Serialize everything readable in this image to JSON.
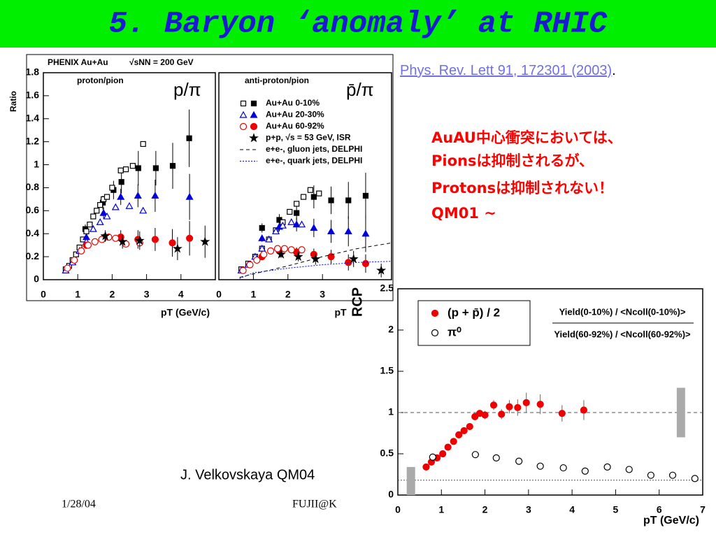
{
  "title": "5. Baryon ‘anomaly’ at RHIC",
  "reference": "Phys. Rev. Lett 91, 172301 (2003)",
  "reference_end": ".",
  "note_lines": [
    "AuAU中心衝突においては、",
    "Pionsは抑制されるが、",
    "Protonsは抑制されない！",
    "QM01 ~"
  ],
  "credit": "J. Velkovskaya QM04",
  "footer_date": "1/28/04",
  "footer_author": "FUJII@K",
  "chart_data": [
    {
      "type": "scatter",
      "header": "PHENIX Au+Au",
      "header_energy": "√sNN = 200 GeV",
      "panel_title": "proton/pion",
      "ratio_label": "p/π",
      "ylabel": "Ratio",
      "xlabel": "pT (GeV/c)",
      "xlim": [
        0,
        5
      ],
      "xticks": [
        0,
        1,
        2,
        3,
        4
      ],
      "ylim": [
        0,
        1.8
      ],
      "yticks": [
        0,
        0.2,
        0.4,
        0.6,
        0.8,
        1,
        1.2,
        1.4,
        1.6,
        1.8
      ],
      "series": [
        {
          "color": "#000000",
          "marker": "square",
          "x": [
            1.22,
            1.73,
            2.04,
            2.27,
            2.76,
            3.27,
            3.76,
            4.24
          ],
          "values": [
            0.44,
            0.67,
            0.78,
            0.85,
            0.97,
            0.97,
            0.99,
            1.23
          ],
          "errors": [
            0.04,
            0.06,
            0.08,
            0.1,
            0.15,
            0.15,
            0.2,
            0.25
          ],
          "x_open": [
            0.65,
            0.75,
            0.85,
            0.95,
            1.05,
            1.15,
            1.25,
            1.35,
            1.45,
            1.55,
            1.65,
            1.75,
            1.85,
            2.0,
            2.25,
            2.4,
            2.6,
            2.9
          ],
          "values_open": [
            0.09,
            0.12,
            0.17,
            0.22,
            0.28,
            0.35,
            0.42,
            0.48,
            0.55,
            0.6,
            0.65,
            0.7,
            0.72,
            0.8,
            0.95,
            0.96,
            0.99,
            1.18
          ]
        },
        {
          "color": "#0000dd",
          "marker": "triangle",
          "x": [
            1.25,
            1.75,
            2.25,
            2.75,
            3.25,
            4.25
          ],
          "values": [
            0.37,
            0.58,
            0.72,
            0.73,
            0.73,
            0.72
          ],
          "errors": [
            0.03,
            0.05,
            0.07,
            0.1,
            0.14,
            0.2
          ],
          "x_open": [
            0.65,
            0.85,
            1.05,
            1.25,
            1.45,
            1.65,
            1.85,
            2.1,
            2.5,
            2.9
          ],
          "values_open": [
            0.08,
            0.15,
            0.25,
            0.33,
            0.44,
            0.5,
            0.55,
            0.63,
            0.64,
            0.6
          ]
        },
        {
          "color": "#ee0000",
          "marker": "circle",
          "x": [
            1.25,
            1.75,
            2.25,
            2.75,
            3.25,
            3.75,
            4.25
          ],
          "values": [
            0.3,
            0.36,
            0.37,
            0.35,
            0.35,
            0.32,
            0.36
          ],
          "errors": [
            0.03,
            0.04,
            0.06,
            0.08,
            0.1,
            0.12,
            0.15
          ],
          "x_open": [
            0.7,
            0.9,
            1.1,
            1.3,
            1.5,
            1.7,
            1.9,
            2.1,
            2.4,
            2.8
          ],
          "values_open": [
            0.1,
            0.17,
            0.25,
            0.3,
            0.33,
            0.35,
            0.37,
            0.36,
            0.31,
            0.32
          ]
        },
        {
          "color": "#000000",
          "marker": "star",
          "x": [
            1.8,
            2.3,
            2.8,
            3.9,
            4.7
          ],
          "values": [
            0.38,
            0.33,
            0.34,
            0.27,
            0.33
          ],
          "errors": [
            0.05,
            0.06,
            0.08,
            0.1,
            0.14
          ]
        }
      ]
    },
    {
      "type": "scatter",
      "panel_title": "anti-proton/pion",
      "ratio_label": "p̄/π",
      "xlabel": "pT",
      "xlim": [
        0,
        5
      ],
      "xticks": [
        0,
        1,
        2,
        3
      ],
      "ylim": [
        0,
        1.8
      ],
      "series": [
        {
          "name": "Au+Au 0-10%",
          "color": "#000000",
          "marker": "square",
          "x": [
            1.25,
            1.75,
            2.25,
            2.75,
            3.25,
            3.75,
            4.25
          ],
          "values": [
            0.45,
            0.52,
            0.58,
            0.72,
            0.69,
            0.69,
            0.73
          ],
          "errors": [
            0.04,
            0.05,
            0.07,
            0.1,
            0.12,
            0.16,
            0.2
          ],
          "x_open": [
            0.65,
            0.85,
            1.05,
            1.25,
            1.45,
            1.65,
            1.85,
            2.05,
            2.25,
            2.45,
            2.65,
            2.9
          ],
          "values_open": [
            0.09,
            0.14,
            0.2,
            0.27,
            0.35,
            0.43,
            0.5,
            0.59,
            0.66,
            0.72,
            0.78,
            0.75
          ]
        },
        {
          "name": "Au+Au 20-30%",
          "color": "#0000dd",
          "marker": "triangle",
          "x": [
            1.25,
            1.75,
            2.25,
            2.75,
            3.25,
            3.75,
            4.25
          ],
          "values": [
            0.36,
            0.46,
            0.48,
            0.45,
            0.42,
            0.42,
            0.4
          ],
          "errors": [
            0.03,
            0.04,
            0.06,
            0.08,
            0.1,
            0.13,
            0.16
          ],
          "x_open": [
            0.65,
            0.85,
            1.05,
            1.25,
            1.45,
            1.65,
            1.85,
            2.1,
            2.4
          ],
          "values_open": [
            0.08,
            0.13,
            0.2,
            0.27,
            0.35,
            0.42,
            0.47,
            0.5,
            0.48
          ]
        },
        {
          "name": "Au+Au 60-92%",
          "color": "#ee0000",
          "marker": "circle",
          "x": [
            1.25,
            1.75,
            2.25,
            2.75,
            3.25,
            3.75,
            4.25
          ],
          "values": [
            0.2,
            0.25,
            0.24,
            0.22,
            0.2,
            0.15,
            0.14
          ],
          "errors": [
            0.02,
            0.03,
            0.04,
            0.05,
            0.06,
            0.07,
            0.08
          ],
          "x_open": [
            0.7,
            0.9,
            1.1,
            1.3,
            1.5,
            1.7,
            1.9,
            2.1,
            2.4
          ],
          "values_open": [
            0.08,
            0.13,
            0.17,
            0.22,
            0.25,
            0.27,
            0.27,
            0.26,
            0.26
          ]
        },
        {
          "name": "p+p, √s = 53 GeV, ISR",
          "color": "#000000",
          "marker": "star",
          "x": [
            1.8,
            2.3,
            2.8,
            3.9,
            4.7
          ],
          "values": [
            0.22,
            0.2,
            0.18,
            0.18,
            0.08
          ],
          "errors": [
            0.03,
            0.04,
            0.05,
            0.07,
            0.06
          ]
        },
        {
          "name": "e+e-, gluon jets, DELPHI",
          "color": "#000000",
          "style": "dashed",
          "x": [
            0.6,
            1,
            2,
            3,
            4,
            5
          ],
          "values": [
            0.02,
            0.05,
            0.12,
            0.2,
            0.27,
            0.32
          ]
        },
        {
          "name": "e+e-, quark jets, DELPHI",
          "color": "#0000ff",
          "style": "dotted",
          "x": [
            0.6,
            1,
            2,
            3,
            4,
            5
          ],
          "values": [
            0.01,
            0.06,
            0.1,
            0.13,
            0.15,
            0.16
          ]
        }
      ]
    },
    {
      "type": "scatter",
      "ylabel": "RCP",
      "xlabel": "pT (GeV/c)",
      "formula_top": "Yield(0-10%) / <Ncoll(0-10%)>",
      "formula_bottom": "Yield(60-92%) / <Ncoll(60-92%)>",
      "xlim": [
        0,
        7
      ],
      "xticks": [
        0,
        1,
        2,
        3,
        4,
        5,
        6,
        7
      ],
      "ylim": [
        0,
        2.5
      ],
      "yticks": [
        0,
        0.5,
        1,
        1.5,
        2,
        2.5
      ],
      "ref_lines": [
        {
          "value": 1,
          "style": "dashed"
        },
        {
          "value": 0.18,
          "style": "dotted"
        }
      ],
      "sys_boxes": [
        {
          "x": 0.3,
          "low": 0,
          "high": 0.34
        },
        {
          "x": 6.5,
          "low": 0.7,
          "high": 1.3
        }
      ],
      "series": [
        {
          "name": "(p + p̄) / 2",
          "color": "#ee0000",
          "marker": "circle",
          "x": [
            0.65,
            0.77,
            0.9,
            1.03,
            1.15,
            1.28,
            1.4,
            1.52,
            1.65,
            1.77,
            1.88,
            2.0,
            2.2,
            2.38,
            2.56,
            2.75,
            2.95,
            3.27,
            3.77,
            4.27
          ],
          "values": [
            0.34,
            0.4,
            0.45,
            0.5,
            0.58,
            0.65,
            0.73,
            0.78,
            0.83,
            0.95,
            0.99,
            0.97,
            1.09,
            0.98,
            1.07,
            1.06,
            1.12,
            1.1,
            0.99,
            1.03
          ],
          "errors": [
            0.02,
            0.02,
            0.02,
            0.02,
            0.02,
            0.02,
            0.03,
            0.03,
            0.03,
            0.04,
            0.04,
            0.05,
            0.06,
            0.06,
            0.08,
            0.1,
            0.12,
            0.12,
            0.1,
            0.12
          ]
        },
        {
          "name": "π⁰",
          "color": "#000000",
          "marker": "circle",
          "x_open": [
            0.8,
            1.78,
            2.26,
            2.78,
            3.27,
            3.8,
            4.3,
            4.81,
            5.31,
            5.81,
            6.31,
            6.82
          ],
          "values_open": [
            0.46,
            0.49,
            0.45,
            0.41,
            0.35,
            0.33,
            0.29,
            0.34,
            0.31,
            0.24,
            0.24,
            0.2
          ],
          "errors_open": [
            0.04,
            0.04,
            0.04,
            0.04,
            0.04,
            0.03,
            0.03,
            0.03,
            0.04,
            0.03,
            0.04,
            0.04
          ]
        }
      ]
    }
  ]
}
